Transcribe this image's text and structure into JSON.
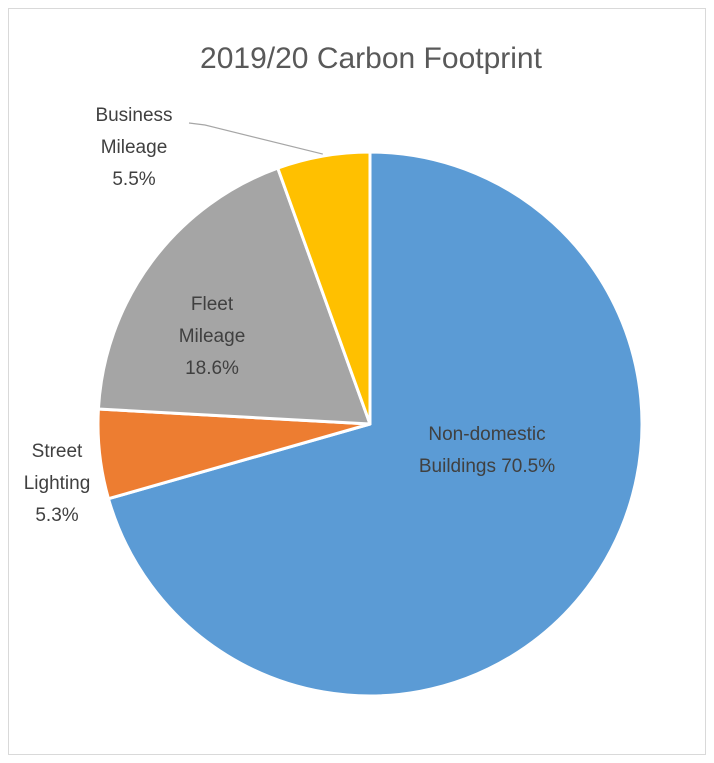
{
  "chart_data": {
    "type": "pie",
    "title": "2019/20 Carbon Footprint",
    "start_angle_deg": 0,
    "direction": "clockwise",
    "slices": [
      {
        "label": "Non-domestic Buildings",
        "label_lines": [
          "Non-domestic",
          "Buildings 70.5%"
        ],
        "value": 70.5,
        "value_label": "70.5%",
        "color": "#5B9BD5"
      },
      {
        "label": "Street Lighting",
        "label_lines": [
          "Street",
          "Lighting",
          "5.3%"
        ],
        "value": 5.3,
        "value_label": "5.3%",
        "color": "#ED7D31"
      },
      {
        "label": "Fleet Mileage",
        "label_lines": [
          "Fleet",
          "Mileage",
          "18.6%"
        ],
        "value": 18.6,
        "value_label": "18.6%",
        "color": "#A5A5A5"
      },
      {
        "label": "Business Mileage",
        "label_lines": [
          "Business",
          "Mileage",
          "5.5%"
        ],
        "value": 5.5,
        "value_label": "5.5%",
        "color": "#FFC000"
      }
    ]
  }
}
